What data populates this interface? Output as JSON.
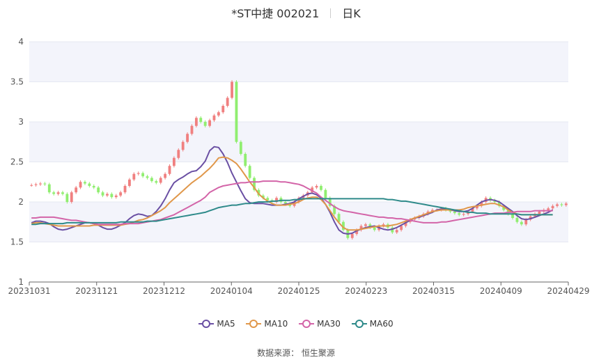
{
  "header": {
    "name": "*ST中捷 002021",
    "period": "日K"
  },
  "source": "数据来源：  恒生聚源",
  "legend": [
    {
      "label": "MA5",
      "color": "#6a4fa3"
    },
    {
      "label": "MA10",
      "color": "#e0974a"
    },
    {
      "label": "MA30",
      "color": "#d364a8"
    },
    {
      "label": "MA60",
      "color": "#2e8a8a"
    }
  ],
  "colors": {
    "up": "#f08080",
    "down": "#90ee70",
    "band": "#f3f4fb"
  },
  "chart_data": {
    "type": "candlestick",
    "ylim": [
      1,
      4
    ],
    "yticks": [
      "1",
      "1.5",
      "2",
      "2.5",
      "3",
      "3.5",
      "4"
    ],
    "xtick_labels": [
      "20231031",
      "20231121",
      "20231212",
      "20240104",
      "20240125",
      "20240223",
      "20240315",
      "20240409",
      "20240429"
    ],
    "xtick_index": [
      0,
      15,
      30,
      45,
      60,
      75,
      90,
      105,
      120
    ],
    "close": [
      2.21,
      2.22,
      2.23,
      2.22,
      2.12,
      2.1,
      2.12,
      2.1,
      2.0,
      2.12,
      2.18,
      2.25,
      2.23,
      2.2,
      2.18,
      2.12,
      2.08,
      2.1,
      2.06,
      2.08,
      2.12,
      2.2,
      2.28,
      2.35,
      2.36,
      2.32,
      2.3,
      2.26,
      2.24,
      2.3,
      2.35,
      2.45,
      2.55,
      2.65,
      2.75,
      2.85,
      2.95,
      3.05,
      3.0,
      2.95,
      3.02,
      3.08,
      3.12,
      3.2,
      3.3,
      3.5,
      2.75,
      2.6,
      2.45,
      2.3,
      2.15,
      2.08,
      2.05,
      2.02,
      2.0,
      2.05,
      2.0,
      1.98,
      1.95,
      2.0,
      2.05,
      2.08,
      2.12,
      2.18,
      2.2,
      2.15,
      2.05,
      1.95,
      1.85,
      1.75,
      1.65,
      1.55,
      1.6,
      1.65,
      1.7,
      1.72,
      1.68,
      1.65,
      1.7,
      1.72,
      1.68,
      1.62,
      1.65,
      1.7,
      1.75,
      1.78,
      1.8,
      1.82,
      1.85,
      1.88,
      1.9,
      1.9,
      1.92,
      1.9,
      1.88,
      1.86,
      1.84,
      1.85,
      1.88,
      1.92,
      1.95,
      2.0,
      2.05,
      2.02,
      2.0,
      1.95,
      1.9,
      1.85,
      1.8,
      1.75,
      1.72,
      1.78,
      1.82,
      1.85,
      1.88,
      1.9,
      1.92,
      1.95,
      1.97,
      1.96,
      1.98
    ],
    "ma_series": [
      {
        "name": "MA5",
        "values": [
          1.74,
          1.76,
          1.76,
          1.75,
          1.73,
          1.69,
          1.66,
          1.65,
          1.66,
          1.68,
          1.7,
          1.72,
          1.74,
          1.74,
          1.73,
          1.71,
          1.68,
          1.66,
          1.66,
          1.68,
          1.71,
          1.74,
          1.79,
          1.83,
          1.85,
          1.84,
          1.82,
          1.83,
          1.88,
          1.95,
          2.04,
          2.15,
          2.24,
          2.28,
          2.31,
          2.35,
          2.38,
          2.39,
          2.44,
          2.51,
          2.64,
          2.69,
          2.68,
          2.6,
          2.49,
          2.36,
          2.25,
          2.14,
          2.04,
          1.99,
          1.98,
          1.98,
          1.98,
          1.97,
          1.96,
          1.96,
          1.96,
          1.97,
          1.98,
          2.0,
          2.04,
          2.07,
          2.1,
          2.11,
          2.09,
          2.05,
          1.97,
          1.87,
          1.75,
          1.65,
          1.61,
          1.6,
          1.61,
          1.64,
          1.66,
          1.68,
          1.69,
          1.7,
          1.68,
          1.66,
          1.65,
          1.66,
          1.68,
          1.71,
          1.74,
          1.77,
          1.8,
          1.81,
          1.83,
          1.85,
          1.87,
          1.9,
          1.91,
          1.91,
          1.9,
          1.89,
          1.88,
          1.88,
          1.89,
          1.92,
          1.96,
          2.0,
          2.02,
          2.03,
          2.02,
          2.0,
          1.96,
          1.92,
          1.88,
          1.83,
          1.79,
          1.78,
          1.79,
          1.81,
          1.83,
          1.85,
          1.87,
          1.9
        ]
      },
      {
        "name": "MA10",
        "values": [
          1.73,
          1.74,
          1.74,
          1.73,
          1.72,
          1.71,
          1.7,
          1.7,
          1.7,
          1.7,
          1.7,
          1.7,
          1.7,
          1.7,
          1.71,
          1.71,
          1.71,
          1.71,
          1.71,
          1.71,
          1.71,
          1.72,
          1.73,
          1.75,
          1.77,
          1.78,
          1.8,
          1.83,
          1.86,
          1.89,
          1.93,
          1.99,
          2.04,
          2.09,
          2.14,
          2.19,
          2.24,
          2.28,
          2.32,
          2.37,
          2.42,
          2.48,
          2.55,
          2.56,
          2.55,
          2.52,
          2.48,
          2.41,
          2.33,
          2.25,
          2.18,
          2.1,
          2.05,
          2.01,
          1.98,
          1.96,
          1.96,
          1.96,
          1.97,
          1.98,
          2.0,
          2.03,
          2.05,
          2.06,
          2.06,
          2.03,
          1.97,
          1.89,
          1.81,
          1.74,
          1.68,
          1.65,
          1.65,
          1.65,
          1.66,
          1.67,
          1.68,
          1.69,
          1.7,
          1.7,
          1.7,
          1.71,
          1.72,
          1.74,
          1.76,
          1.78,
          1.8,
          1.82,
          1.84,
          1.86,
          1.88,
          1.89,
          1.9,
          1.9,
          1.9,
          1.9,
          1.9,
          1.91,
          1.93,
          1.94,
          1.95,
          1.96,
          1.97,
          1.98,
          1.98,
          1.96,
          1.94,
          1.9,
          1.87,
          1.85,
          1.84,
          1.84,
          1.84,
          1.84,
          1.84,
          1.84,
          1.84,
          1.84
        ]
      },
      {
        "name": "MA30",
        "values": [
          1.8,
          1.8,
          1.81,
          1.81,
          1.81,
          1.81,
          1.8,
          1.79,
          1.78,
          1.77,
          1.77,
          1.76,
          1.75,
          1.74,
          1.73,
          1.72,
          1.72,
          1.72,
          1.72,
          1.72,
          1.72,
          1.73,
          1.73,
          1.73,
          1.73,
          1.74,
          1.75,
          1.76,
          1.77,
          1.78,
          1.8,
          1.82,
          1.84,
          1.87,
          1.9,
          1.93,
          1.96,
          1.99,
          2.02,
          2.06,
          2.12,
          2.15,
          2.18,
          2.2,
          2.21,
          2.22,
          2.23,
          2.24,
          2.24,
          2.25,
          2.25,
          2.25,
          2.26,
          2.26,
          2.26,
          2.26,
          2.25,
          2.25,
          2.24,
          2.23,
          2.22,
          2.2,
          2.17,
          2.14,
          2.11,
          2.06,
          2.02,
          1.98,
          1.94,
          1.91,
          1.89,
          1.88,
          1.87,
          1.86,
          1.85,
          1.84,
          1.83,
          1.82,
          1.81,
          1.81,
          1.8,
          1.8,
          1.79,
          1.79,
          1.78,
          1.77,
          1.76,
          1.75,
          1.74,
          1.74,
          1.74,
          1.74,
          1.75,
          1.75,
          1.76,
          1.77,
          1.78,
          1.79,
          1.8,
          1.81,
          1.82,
          1.83,
          1.84,
          1.85,
          1.86,
          1.86,
          1.86,
          1.87,
          1.87,
          1.88,
          1.88,
          1.88,
          1.88,
          1.89,
          1.89,
          1.89,
          1.89,
          1.89
        ]
      },
      {
        "name": "MA60",
        "values": [
          1.72,
          1.72,
          1.73,
          1.73,
          1.73,
          1.73,
          1.73,
          1.73,
          1.74,
          1.74,
          1.74,
          1.74,
          1.74,
          1.74,
          1.74,
          1.74,
          1.74,
          1.74,
          1.74,
          1.74,
          1.75,
          1.75,
          1.75,
          1.75,
          1.75,
          1.75,
          1.76,
          1.76,
          1.76,
          1.77,
          1.78,
          1.79,
          1.8,
          1.81,
          1.82,
          1.83,
          1.84,
          1.85,
          1.86,
          1.87,
          1.89,
          1.91,
          1.93,
          1.94,
          1.95,
          1.96,
          1.96,
          1.97,
          1.98,
          1.98,
          1.99,
          2.0,
          2.0,
          2.0,
          2.01,
          2.01,
          2.02,
          2.02,
          2.02,
          2.03,
          2.03,
          2.04,
          2.04,
          2.04,
          2.04,
          2.04,
          2.04,
          2.04,
          2.04,
          2.04,
          2.04,
          2.04,
          2.04,
          2.04,
          2.04,
          2.04,
          2.04,
          2.04,
          2.04,
          2.04,
          2.03,
          2.03,
          2.02,
          2.01,
          2.01,
          2.0,
          1.99,
          1.98,
          1.97,
          1.96,
          1.95,
          1.94,
          1.93,
          1.92,
          1.91,
          1.9,
          1.89,
          1.88,
          1.87,
          1.87,
          1.86,
          1.86,
          1.86,
          1.85,
          1.85,
          1.85,
          1.85,
          1.85,
          1.85,
          1.85,
          1.84,
          1.84,
          1.84,
          1.84,
          1.84,
          1.84,
          1.84,
          1.84
        ]
      }
    ]
  }
}
